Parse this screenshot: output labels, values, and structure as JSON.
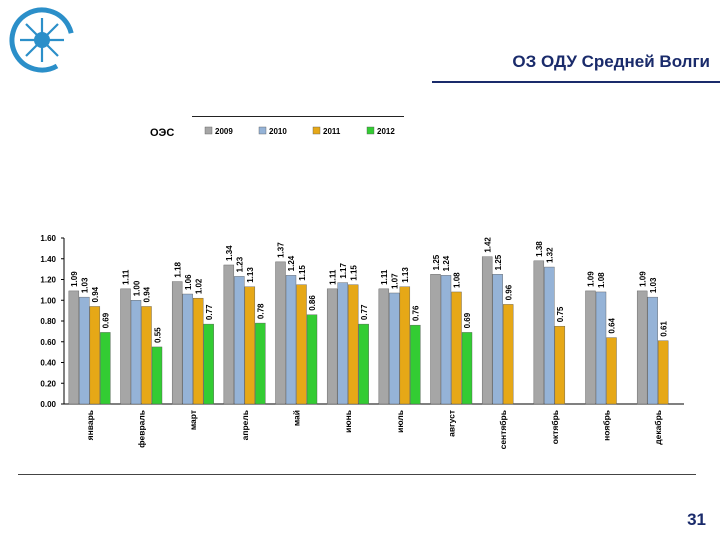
{
  "slide": {
    "title": "ОЗ ОДУ Средней Волги",
    "page_number": "31"
  },
  "colors": {
    "accent": "#1a2b6b",
    "logo": "#2b8fc9"
  },
  "chart_data": {
    "type": "bar",
    "title": "ОЭС",
    "categories": [
      "январь",
      "февраль",
      "март",
      "апрель",
      "май",
      "июнь",
      "июль",
      "август",
      "сентябрь",
      "октябрь",
      "ноябрь",
      "декабрь"
    ],
    "series": [
      {
        "name": "2009",
        "color": "#a6a6a6",
        "values": [
          1.09,
          1.11,
          1.18,
          1.34,
          1.37,
          1.11,
          1.11,
          1.25,
          1.42,
          1.38,
          1.09,
          1.09
        ]
      },
      {
        "name": "2010",
        "color": "#95b3d7",
        "values": [
          1.03,
          1.0,
          1.06,
          1.23,
          1.24,
          1.17,
          1.07,
          1.24,
          1.25,
          1.32,
          1.08,
          1.03
        ]
      },
      {
        "name": "2011",
        "color": "#e6a817",
        "values": [
          0.94,
          0.94,
          1.02,
          1.13,
          1.15,
          1.15,
          1.13,
          1.08,
          0.96,
          0.75,
          0.64,
          0.61
        ]
      },
      {
        "name": "2012",
        "color": "#33cc33",
        "values": [
          0.69,
          0.55,
          0.77,
          0.78,
          0.86,
          0.77,
          0.76,
          0.69,
          null,
          null,
          null,
          null
        ]
      }
    ],
    "yticks": [
      "0.00",
      "0.20",
      "0.40",
      "0.60",
      "0.80",
      "1.00",
      "1.20",
      "1.40",
      "1.60"
    ],
    "ylim": [
      0,
      1.6
    ],
    "xlabel": "",
    "ylabel": "",
    "legend_position": "top"
  }
}
